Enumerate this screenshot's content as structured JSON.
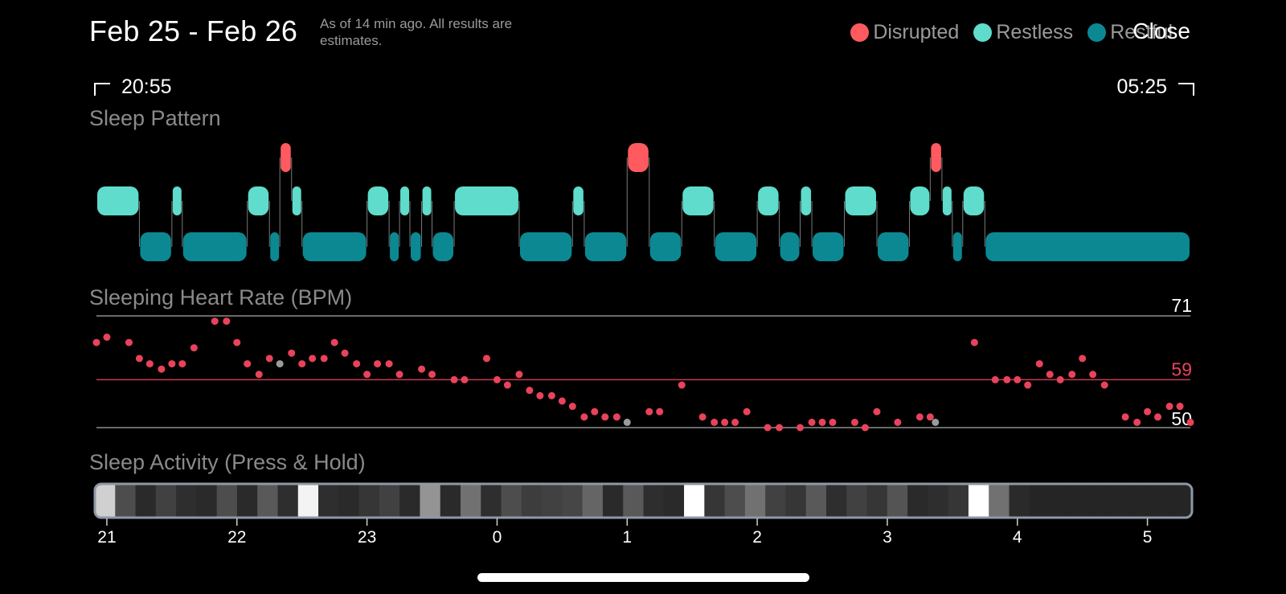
{
  "header": {
    "title": "Feb 25 - Feb 26",
    "subtitle": "As of 14 min ago. All results are estimates.",
    "close_label": "Close"
  },
  "legend": [
    {
      "label": "Disrupted",
      "color": "#FF5A5F",
      "icon": "dot-icon"
    },
    {
      "label": "Restless",
      "color": "#5FDCCB",
      "icon": "dot-icon"
    },
    {
      "label": "Restful",
      "color": "#0C8893",
      "icon": "dot-icon"
    }
  ],
  "time_range": {
    "start": "20:55",
    "end": "05:25"
  },
  "sleep_pattern": {
    "label": "Sleep Pattern",
    "levels": [
      "disrupted",
      "restless",
      "restful"
    ],
    "colors": {
      "disrupted": "#FF5A5F",
      "restless": "#5FDCCB",
      "restful": "#0C8893"
    },
    "segments": [
      [
        "restless",
        20.92,
        21.25
      ],
      [
        "restful",
        21.25,
        21.5
      ],
      [
        "restless",
        21.5,
        21.58
      ],
      [
        "restful",
        21.58,
        22.08
      ],
      [
        "restless",
        22.08,
        22.25
      ],
      [
        "restful",
        22.25,
        22.33
      ],
      [
        "disrupted",
        22.33,
        22.42
      ],
      [
        "restless",
        22.42,
        22.5
      ],
      [
        "restful",
        22.5,
        23.0
      ],
      [
        "restless",
        23.0,
        23.17
      ],
      [
        "restful",
        23.17,
        23.25
      ],
      [
        "restless",
        23.25,
        23.33
      ],
      [
        "restful",
        23.33,
        23.42
      ],
      [
        "restless",
        23.42,
        23.5
      ],
      [
        "restful",
        23.5,
        23.67
      ],
      [
        "restless",
        23.67,
        24.17
      ],
      [
        "restful",
        24.17,
        24.58
      ],
      [
        "restless",
        24.58,
        24.67
      ],
      [
        "restful",
        24.67,
        25.0
      ],
      [
        "disrupted",
        25.0,
        25.17
      ],
      [
        "restful",
        25.17,
        25.42
      ],
      [
        "restless",
        25.42,
        25.67
      ],
      [
        "restful",
        25.67,
        26.0
      ],
      [
        "restless",
        26.0,
        26.17
      ],
      [
        "restful",
        26.17,
        26.33
      ],
      [
        "restless",
        26.33,
        26.42
      ],
      [
        "restful",
        26.42,
        26.67
      ],
      [
        "restless",
        26.67,
        26.92
      ],
      [
        "restful",
        26.92,
        27.17
      ],
      [
        "restless",
        27.17,
        27.33
      ],
      [
        "disrupted",
        27.33,
        27.42
      ],
      [
        "restless",
        27.42,
        27.5
      ],
      [
        "restful",
        27.5,
        27.58
      ],
      [
        "restless",
        27.58,
        27.75
      ],
      [
        "restful",
        27.75,
        29.33
      ]
    ]
  },
  "heart_rate": {
    "label": "Sleeping Heart Rate (BPM)",
    "max": 71,
    "avg": 59,
    "min": 50,
    "max_label": "71",
    "avg_label": "59",
    "min_label": "50",
    "max_color": "#FFFFFF",
    "avg_color": "#E8435B",
    "min_color": "#FFFFFF",
    "dot_color": "#E8435B",
    "gap_color": "#9B9B9B",
    "line_color": "#8E8E8E",
    "avg_line_color": "#C8384F"
  },
  "chart_data": {
    "type": "scatter",
    "title": "Sleeping Heart Rate (BPM)",
    "xlabel": "",
    "ylabel": "",
    "ylim": [
      50,
      71
    ],
    "xlim": [
      20.92,
      29.33
    ],
    "x_ticks": [
      "21",
      "22",
      "23",
      "0",
      "1",
      "2",
      "3",
      "4",
      "5"
    ],
    "series": [
      {
        "kind": "measured",
        "x": [
          20.92,
          21.0,
          21.17,
          21.25,
          21.33,
          21.42,
          21.5,
          21.58,
          21.67,
          21.83,
          21.92,
          22.0,
          22.08,
          22.17,
          22.25,
          22.42,
          22.5,
          22.58,
          22.67,
          22.75,
          22.83,
          22.92,
          23.0,
          23.08,
          23.17,
          23.25,
          23.42,
          23.5,
          23.67,
          23.75,
          23.92,
          24.0,
          24.08,
          24.17,
          24.25,
          24.33,
          24.42,
          24.5,
          24.58,
          24.67,
          24.75,
          24.83,
          24.92,
          25.17,
          25.25,
          25.42,
          25.58,
          25.67,
          25.75,
          25.83,
          25.92,
          26.08,
          26.17,
          26.33,
          26.42,
          26.5,
          26.58,
          26.75,
          26.83,
          26.92,
          27.08,
          27.25,
          27.33,
          27.67,
          27.83,
          27.92,
          28.0,
          28.08,
          28.17,
          28.25,
          28.33,
          28.42,
          28.5,
          28.58,
          28.67,
          28.83,
          28.92,
          29.0,
          29.08,
          29.17,
          29.25,
          29.33
        ],
        "y": [
          66,
          67,
          66,
          63,
          62,
          61,
          62,
          62,
          65,
          70,
          70,
          66,
          62,
          60,
          63,
          64,
          62,
          63,
          63,
          66,
          64,
          62,
          60,
          62,
          62,
          60,
          61,
          60,
          59,
          59,
          63,
          59,
          58,
          60,
          57,
          56,
          56,
          55,
          54,
          52,
          53,
          52,
          52,
          53,
          53,
          58,
          52,
          51,
          51,
          51,
          53,
          50,
          50,
          50,
          51,
          51,
          51,
          51,
          50,
          53,
          51,
          52,
          52,
          66,
          59,
          59,
          59,
          58,
          62,
          60,
          59,
          60,
          63,
          60,
          58,
          52,
          51,
          53,
          52,
          54,
          54,
          51
        ]
      },
      {
        "kind": "estimated",
        "x": [
          22.33,
          25.0,
          27.37
        ],
        "y": [
          62,
          51,
          51
        ]
      }
    ]
  },
  "sleep_activity": {
    "label": "Sleep Activity (Press & Hold)",
    "levels": [
      0.8,
      0.25,
      0.1,
      0.2,
      0.12,
      0.1,
      0.25,
      0.1,
      0.3,
      0.12,
      0.95,
      0.12,
      0.1,
      0.15,
      0.2,
      0.1,
      0.55,
      0.1,
      0.4,
      0.12,
      0.25,
      0.18,
      0.2,
      0.22,
      0.35,
      0.1,
      0.3,
      0.12,
      0.1,
      1.0,
      0.15,
      0.25,
      0.4,
      0.2,
      0.15,
      0.3,
      0.12,
      0.2,
      0.15,
      0.28,
      0.1,
      0.12,
      0.15,
      1.0,
      0.4,
      0.1,
      0.08,
      0.08,
      0.08,
      0.08,
      0.08,
      0.08,
      0.08,
      0.08
    ],
    "frame_color": "#8E99A6"
  },
  "time_axis": [
    "21",
    "22",
    "23",
    "0",
    "1",
    "2",
    "3",
    "4",
    "5"
  ]
}
